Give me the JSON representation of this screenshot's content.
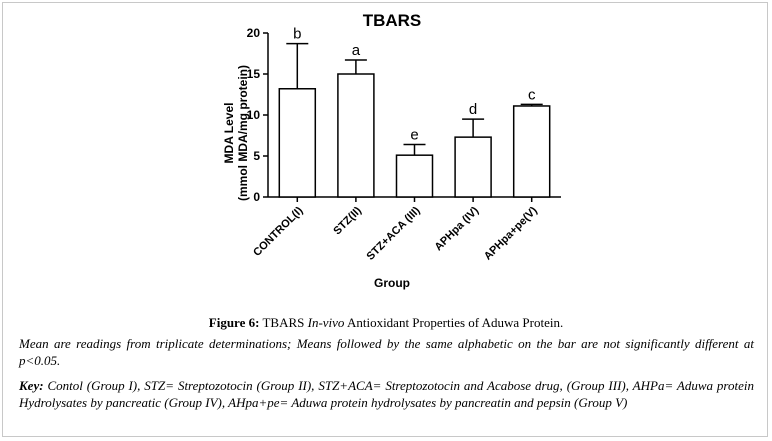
{
  "chart_data": {
    "type": "bar",
    "title": "TBARS",
    "xlabel": "Group",
    "ylabel_line1": "MDA Level",
    "ylabel_line2": "(mmol MDA/mg protein)",
    "ylim": [
      0,
      20
    ],
    "yticks": [
      "0",
      "5",
      "10",
      "15",
      "20"
    ],
    "categories": [
      "CONTROL(I)",
      "STZ(II)",
      "STZ+ACA (III)",
      "APHpa (IV)",
      "APHpa+pe(V)"
    ],
    "values": [
      13.2,
      15.0,
      5.1,
      7.3,
      11.1
    ],
    "errors": [
      5.5,
      1.7,
      1.3,
      2.2,
      0.2
    ],
    "significance": [
      "b",
      "a",
      "e",
      "d",
      "c"
    ],
    "grid": false,
    "bar_color": "#ffffff",
    "edge_color": "#000000"
  },
  "caption": {
    "figure_label": "Figure 6:",
    "title_pre": " TBARS ",
    "title_italic": "In-vivo",
    "title_post": " Antioxidant Properties of Aduwa Protein.",
    "note": "Mean are readings from triplicate determinations; Means followed by the same alphabetic on the bar are not significantly different at p<0.05.",
    "key_label": "Key:",
    "key_text": " Contol (Group I), STZ= Streptozotocin (Group II), STZ+ACA= Streptozotocin and Acabose drug, (Group III), AHPa= Aduwa protein Hydrolysates by pancreatic (Group IV), AHpa+pe= Aduwa protein hydrolysates by pancreatin and pepsin (Group V)"
  }
}
